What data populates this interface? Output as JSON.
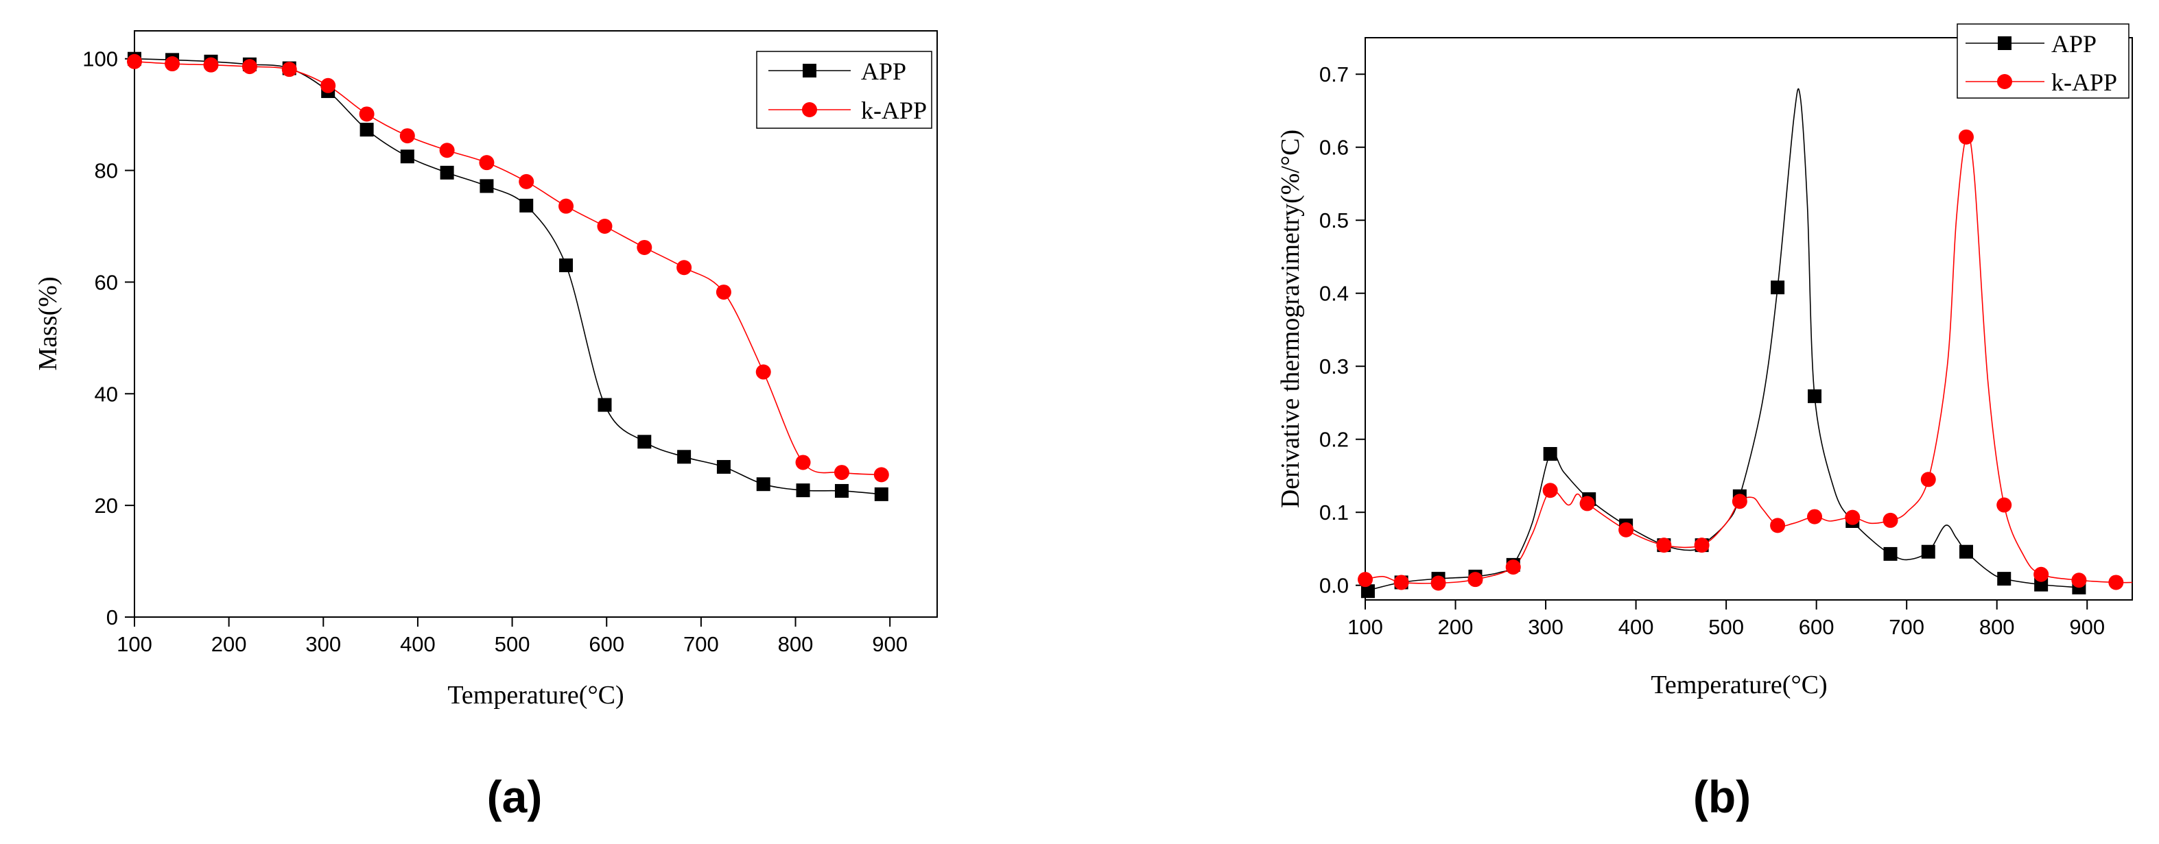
{
  "chart_data": [
    {
      "type": "line",
      "panel_label": "(a)",
      "title": "",
      "xlabel": "Temperature(°C)",
      "ylabel": "Mass(%)",
      "xlim": [
        100,
        950
      ],
      "ylim": [
        0,
        105
      ],
      "xticks": [
        100,
        200,
        300,
        400,
        500,
        600,
        700,
        800,
        900
      ],
      "yticks": [
        0,
        20,
        40,
        60,
        80,
        100
      ],
      "grid": false,
      "legend_position": "top-right",
      "series": [
        {
          "name": "APP",
          "color": "#000000",
          "marker": "square",
          "x": [
            100,
            140,
            181,
            222,
            264,
            305,
            346,
            389,
            431,
            473,
            515,
            557,
            598,
            640,
            682,
            724,
            766,
            808,
            849,
            891
          ],
          "y": [
            100,
            99.8,
            99.5,
            99.0,
            98.3,
            94.2,
            87.3,
            82.5,
            79.6,
            77.2,
            73.7,
            63.0,
            38.0,
            31.4,
            28.7,
            26.9,
            23.8,
            22.7,
            22.6,
            22.0
          ]
        },
        {
          "name": "k-APP",
          "color": "#ff0000",
          "marker": "circle",
          "x": [
            100,
            140,
            181,
            222,
            264,
            305,
            346,
            389,
            431,
            473,
            515,
            557,
            598,
            640,
            682,
            724,
            766,
            808,
            849,
            891
          ],
          "y": [
            99.5,
            99.1,
            98.9,
            98.6,
            98.1,
            95.2,
            90.1,
            86.2,
            83.6,
            81.4,
            78.0,
            73.6,
            70.0,
            66.2,
            62.6,
            58.2,
            43.9,
            27.7,
            25.9,
            25.5
          ]
        }
      ]
    },
    {
      "type": "line",
      "panel_label": "(b)",
      "title": "",
      "xlabel": "Temperature(°C)",
      "ylabel": "Derivative thermogravimetry(%/°C)",
      "xlim": [
        100,
        950
      ],
      "ylim": [
        -0.02,
        0.75
      ],
      "xticks": [
        100,
        200,
        300,
        400,
        500,
        600,
        700,
        800,
        900
      ],
      "yticks": [
        0.0,
        0.1,
        0.2,
        0.3,
        0.4,
        0.5,
        0.6,
        0.7
      ],
      "grid": false,
      "legend_position": "top-right",
      "series": [
        {
          "name": "APP",
          "color": "#000000",
          "marker": "square",
          "x": [
            103,
            140,
            181,
            222,
            264,
            305,
            348,
            389,
            431,
            473,
            515,
            557,
            598,
            640,
            682,
            724,
            766,
            808,
            849,
            891
          ],
          "y": [
            -0.008,
            0.004,
            0.009,
            0.012,
            0.028,
            0.18,
            0.118,
            0.082,
            0.055,
            0.055,
            0.122,
            0.408,
            0.259,
            0.088,
            0.043,
            0.046,
            0.046,
            0.009,
            0.001,
            -0.003
          ],
          "curve_x": [
            100,
            140,
            181,
            222,
            250,
            264,
            285,
            305,
            320,
            348,
            389,
            431,
            460,
            473,
            500,
            515,
            540,
            557,
            575,
            582,
            590,
            598,
            620,
            640,
            665,
            682,
            700,
            724,
            743,
            755,
            766,
            790,
            808,
            849,
            891
          ],
          "curve_y": [
            -0.008,
            0.004,
            0.009,
            0.012,
            0.018,
            0.028,
            0.085,
            0.18,
            0.155,
            0.118,
            0.082,
            0.055,
            0.048,
            0.055,
            0.085,
            0.122,
            0.25,
            0.408,
            0.64,
            0.67,
            0.52,
            0.259,
            0.13,
            0.088,
            0.058,
            0.043,
            0.035,
            0.046,
            0.082,
            0.065,
            0.046,
            0.02,
            0.009,
            0.001,
            -0.003
          ]
        },
        {
          "name": "k-APP",
          "color": "#ff0000",
          "marker": "circle",
          "x": [
            100,
            140,
            181,
            222,
            264,
            305,
            346,
            389,
            431,
            473,
            515,
            557,
            598,
            640,
            682,
            724,
            766,
            808,
            849,
            891,
            932
          ],
          "y": [
            0.008,
            0.004,
            0.003,
            0.008,
            0.025,
            0.13,
            0.112,
            0.076,
            0.055,
            0.055,
            0.115,
            0.082,
            0.094,
            0.093,
            0.089,
            0.145,
            0.614,
            0.11,
            0.015,
            0.007,
            0.004
          ],
          "curve_x": [
            100,
            120,
            140,
            181,
            222,
            264,
            285,
            305,
            325,
            335,
            346,
            389,
            431,
            473,
            500,
            515,
            530,
            540,
            557,
            575,
            598,
            615,
            640,
            660,
            682,
            700,
            724,
            745,
            755,
            766,
            775,
            790,
            808,
            830,
            849,
            891,
            932,
            950
          ],
          "curve_y": [
            0.008,
            0.012,
            0.004,
            0.003,
            0.008,
            0.025,
            0.07,
            0.13,
            0.11,
            0.125,
            0.112,
            0.076,
            0.055,
            0.055,
            0.085,
            0.115,
            0.12,
            0.105,
            0.082,
            0.085,
            0.094,
            0.088,
            0.093,
            0.085,
            0.089,
            0.1,
            0.145,
            0.3,
            0.5,
            0.614,
            0.56,
            0.28,
            0.11,
            0.04,
            0.015,
            0.007,
            0.004,
            0.004
          ]
        }
      ]
    }
  ]
}
